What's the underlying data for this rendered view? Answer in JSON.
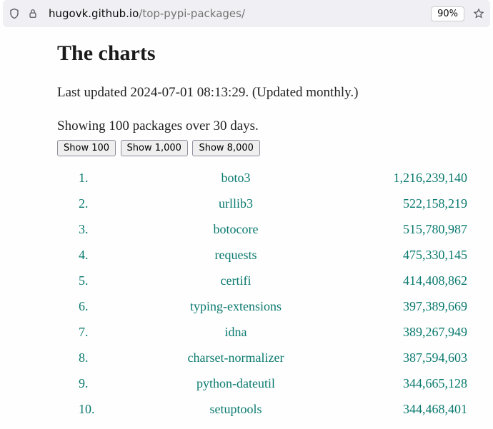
{
  "browser": {
    "url_main": "hugovk.github.io",
    "url_path": "/top-pypi-packages/",
    "zoom": "90%"
  },
  "page": {
    "heading": "The charts",
    "last_updated": "Last updated 2024-07-01 08:13:29. (Updated monthly.)",
    "showing": "Showing 100 packages over 30 days.",
    "buttons": {
      "show100": "Show 100",
      "show1000": "Show 1,000",
      "show8000": "Show 8,000"
    },
    "colors": {
      "link": "#0a7a6f",
      "text": "#222222",
      "bg": "#fefefe",
      "browser_bar": "#f0f0f4"
    },
    "packages": [
      {
        "name": "boto3",
        "downloads": "1,216,239,140"
      },
      {
        "name": "urllib3",
        "downloads": "522,158,219"
      },
      {
        "name": "botocore",
        "downloads": "515,780,987"
      },
      {
        "name": "requests",
        "downloads": "475,330,145"
      },
      {
        "name": "certifi",
        "downloads": "414,408,862"
      },
      {
        "name": "typing-extensions",
        "downloads": "397,389,669"
      },
      {
        "name": "idna",
        "downloads": "389,267,949"
      },
      {
        "name": "charset-normalizer",
        "downloads": "387,594,603"
      },
      {
        "name": "python-dateutil",
        "downloads": "344,665,128"
      },
      {
        "name": "setuptools",
        "downloads": "344,468,401"
      }
    ]
  }
}
